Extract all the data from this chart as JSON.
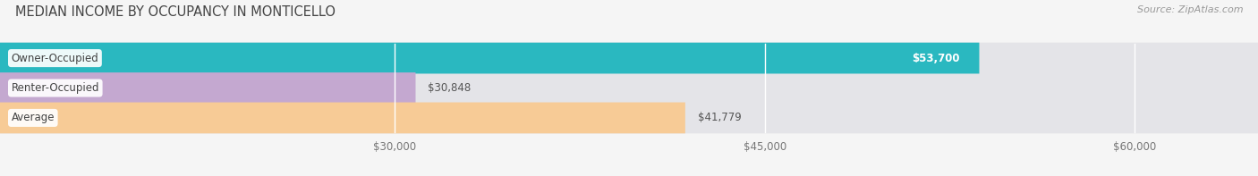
{
  "title": "MEDIAN INCOME BY OCCUPANCY IN MONTICELLO",
  "source": "Source: ZipAtlas.com",
  "categories": [
    "Owner-Occupied",
    "Renter-Occupied",
    "Average"
  ],
  "values": [
    53700,
    30848,
    41779
  ],
  "labels": [
    "$53,700",
    "$30,848",
    "$41,779"
  ],
  "label_colors": [
    "white",
    "#555555",
    "#555555"
  ],
  "label_inside": [
    true,
    false,
    false
  ],
  "bar_colors": [
    "#2ab8c0",
    "#c4a8d0",
    "#f7cb96"
  ],
  "xmin": 14000,
  "xmax": 65000,
  "xticks": [
    30000,
    45000,
    60000
  ],
  "xticklabels": [
    "$30,000",
    "$45,000",
    "$60,000"
  ],
  "background_color": "#f5f5f5",
  "bar_bg_color": "#e4e4e8",
  "title_fontsize": 10.5,
  "source_fontsize": 8,
  "label_fontsize": 8.5,
  "tick_fontsize": 8.5,
  "cat_fontsize": 8.5,
  "bar_height": 0.52,
  "figsize": [
    14.06,
    1.97
  ],
  "dpi": 100
}
